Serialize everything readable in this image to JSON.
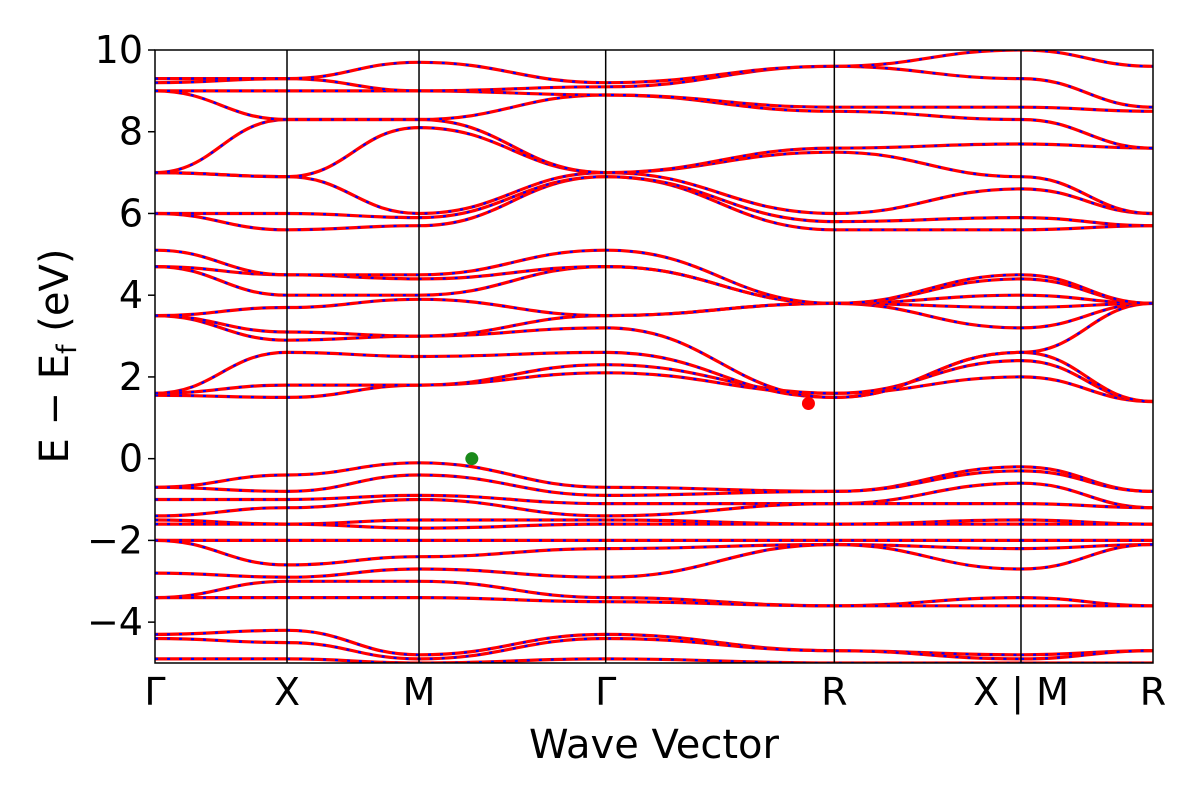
{
  "chart_data": {
    "type": "line",
    "title": "",
    "xlabel": "Wave Vector",
    "ylabel_main": "E − E",
    "ylabel_sub": "f",
    "ylabel_unit": " (eV)",
    "ylim": [
      -5,
      10
    ],
    "yticks": [
      {
        "value": -4,
        "label": "−4"
      },
      {
        "value": -2,
        "label": "−2"
      },
      {
        "value": 0,
        "label": "0"
      },
      {
        "value": 2,
        "label": "2"
      },
      {
        "value": 4,
        "label": "4"
      },
      {
        "value": 6,
        "label": "6"
      },
      {
        "value": 8,
        "label": "8"
      },
      {
        "value": 10,
        "label": "10"
      }
    ],
    "kpath": [
      {
        "label": "Γ",
        "k": 0
      },
      {
        "label": "X",
        "k": 1.0
      },
      {
        "label": "M",
        "k": 2.0
      },
      {
        "label": "Γ",
        "k": 3.414
      },
      {
        "label": "R",
        "k": 5.146
      },
      {
        "label": "X | M",
        "k": 6.56
      },
      {
        "label": "R",
        "k": 7.56
      }
    ],
    "path_break_k": 6.56,
    "series_colors": {
      "line": "#ff0000",
      "dash": "#0000ff"
    },
    "bands": [
      [
        1.55,
        1.5,
        1.8,
        2.1,
        1.6,
        2.0,
        1.4
      ],
      [
        1.6,
        1.8,
        1.8,
        2.3,
        1.6,
        2.4,
        1.4
      ],
      [
        1.6,
        2.6,
        2.5,
        2.6,
        1.5,
        2.6,
        1.4
      ],
      [
        3.5,
        2.9,
        3.0,
        3.2,
        1.5,
        2.6,
        3.8
      ],
      [
        3.5,
        3.1,
        3.0,
        3.5,
        3.8,
        3.2,
        3.8
      ],
      [
        3.5,
        3.7,
        3.9,
        3.5,
        3.8,
        3.7,
        3.8
      ],
      [
        4.7,
        4.0,
        4.0,
        4.7,
        3.8,
        4.0,
        3.8
      ],
      [
        4.7,
        4.5,
        4.4,
        4.7,
        3.8,
        4.4,
        3.8
      ],
      [
        5.1,
        4.5,
        4.5,
        5.1,
        3.8,
        4.5,
        3.8
      ],
      [
        6.0,
        5.6,
        5.7,
        6.9,
        5.6,
        5.6,
        5.7
      ],
      [
        6.0,
        6.0,
        5.9,
        6.9,
        5.8,
        5.9,
        5.7
      ],
      [
        7.0,
        6.9,
        6.0,
        7.0,
        6.0,
        6.6,
        6.0
      ],
      [
        7.0,
        6.9,
        8.1,
        7.0,
        7.5,
        6.9,
        6.0
      ],
      [
        7.0,
        8.3,
        8.3,
        7.0,
        7.6,
        7.7,
        7.6
      ],
      [
        9.0,
        8.3,
        8.3,
        8.9,
        8.5,
        8.3,
        7.6
      ],
      [
        9.0,
        9.0,
        9.0,
        8.9,
        8.6,
        8.6,
        8.5
      ],
      [
        9.2,
        9.3,
        9.0,
        9.1,
        9.6,
        9.3,
        8.6
      ],
      [
        9.3,
        9.3,
        9.7,
        9.2,
        9.6,
        10.0,
        9.6
      ],
      [
        -0.7,
        -0.4,
        -0.1,
        -0.7,
        -0.8,
        -0.2,
        -0.8
      ],
      [
        -0.7,
        -0.8,
        -0.4,
        -0.9,
        -0.8,
        -0.3,
        -0.8
      ],
      [
        -1.0,
        -1.0,
        -0.9,
        -1.1,
        -1.1,
        -0.6,
        -1.2
      ],
      [
        -1.4,
        -1.2,
        -1.0,
        -1.4,
        -1.1,
        -1.1,
        -1.2
      ],
      [
        -1.5,
        -1.6,
        -1.5,
        -1.5,
        -1.6,
        -1.5,
        -1.6
      ],
      [
        -1.6,
        -1.6,
        -1.7,
        -1.6,
        -1.6,
        -1.6,
        -1.6
      ],
      [
        -2.0,
        -2.0,
        -2.0,
        -2.0,
        -2.0,
        -2.0,
        -2.0
      ],
      [
        -2.0,
        -2.6,
        -2.4,
        -2.2,
        -2.1,
        -2.2,
        -2.1
      ],
      [
        -2.8,
        -2.9,
        -2.7,
        -2.9,
        -2.1,
        -2.7,
        -2.1
      ],
      [
        -3.4,
        -3.0,
        -3.0,
        -3.4,
        -3.6,
        -3.4,
        -3.6
      ],
      [
        -3.4,
        -3.4,
        -3.4,
        -3.5,
        -3.6,
        -3.6,
        -3.6
      ],
      [
        -4.3,
        -4.2,
        -4.8,
        -4.3,
        -4.7,
        -4.8,
        -4.7
      ],
      [
        -4.4,
        -4.5,
        -4.9,
        -4.4,
        -4.7,
        -4.9,
        -4.7
      ],
      [
        -4.9,
        -4.9,
        -5.0,
        -4.9,
        -5.0,
        -5.0,
        -5.0
      ]
    ],
    "markers": [
      {
        "name": "valence-band-maximum",
        "k": 2.4,
        "e": 0.0,
        "color": "#1a8a1a"
      },
      {
        "name": "conduction-band-minimum",
        "k": 4.95,
        "e": 1.35,
        "color": "#ff0000"
      }
    ]
  }
}
